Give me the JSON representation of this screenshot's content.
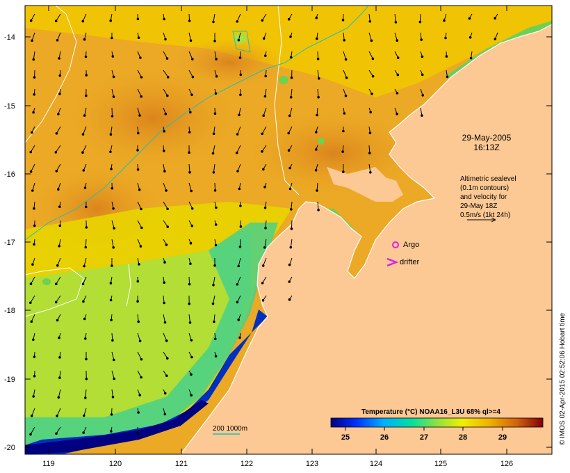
{
  "map": {
    "lat_ticks": [
      "-14",
      "-15",
      "-16",
      "-17",
      "-18",
      "-19",
      "-20"
    ],
    "lon_ticks": [
      "119",
      "120",
      "121",
      "122",
      "123",
      "124",
      "125",
      "126"
    ],
    "date_line1": "29-May-2005",
    "date_line2": "16:13Z",
    "altimetry_lines": [
      "Altimetric sealevel",
      "(0.1m contours)",
      "and velocity for",
      "29-May 18Z",
      "0.5m/s (1kt 24h)"
    ],
    "argo_label": "Argo",
    "drifter_label": "drifter",
    "isobath_label": "200  1000m",
    "colorbar_title": "Temperature (°C) NOAA16_L3U 68% ql>=4",
    "colorbar_ticks": [
      "25",
      "26",
      "27",
      "28",
      "29"
    ],
    "credit": "© IMOS 02-Apr-2015 02:52:06 Hobart time",
    "colors": {
      "land": "#fcc893",
      "argo_marker": "#e020e0",
      "drifter_marker": "#e020e0",
      "isobath": "#20c0b0",
      "sealevel_contour": "#ffffff"
    }
  }
}
